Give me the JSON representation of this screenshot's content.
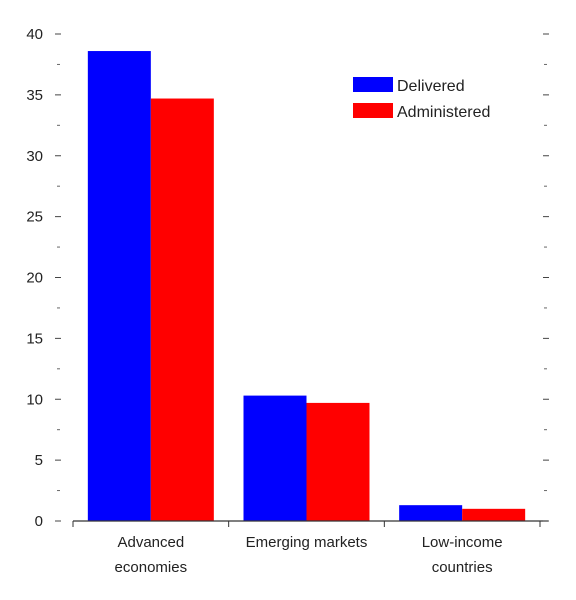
{
  "chart_data": {
    "type": "bar",
    "categories": [
      "Advanced economies",
      "Emerging markets",
      "Low-income countries"
    ],
    "category_label_lines": [
      [
        "Advanced",
        "economies"
      ],
      [
        "Emerging markets"
      ],
      [
        "Low-income",
        "countries"
      ]
    ],
    "series": [
      {
        "name": "Delivered",
        "color": "#0000ff",
        "values": [
          38.6,
          10.3,
          1.3
        ]
      },
      {
        "name": "Administered",
        "color": "#ff0000",
        "values": [
          34.7,
          9.7,
          1.0
        ]
      }
    ],
    "ylim": [
      0,
      40
    ],
    "yticks": [
      0,
      5,
      10,
      15,
      20,
      25,
      30,
      35,
      40
    ],
    "ytick_labels": [
      "0",
      "5",
      "10",
      "15",
      "20",
      "25",
      "30",
      "35",
      "40"
    ],
    "title": "",
    "xlabel": "",
    "ylabel": "",
    "legend_position": "top-right",
    "grid": false
  }
}
